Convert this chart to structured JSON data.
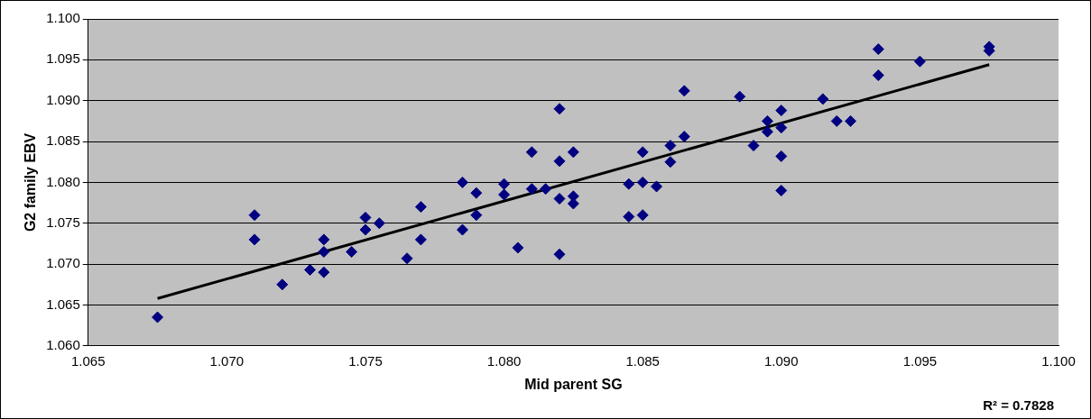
{
  "chart_data": {
    "type": "scatter",
    "xlabel": "Mid parent SG",
    "ylabel": "G2 family EBV",
    "xlim": [
      1.065,
      1.1
    ],
    "ylim": [
      1.06,
      1.1
    ],
    "xticks": [
      {
        "value": 1.065,
        "label": "1.065"
      },
      {
        "value": 1.07,
        "label": "1.070"
      },
      {
        "value": 1.075,
        "label": "1.075"
      },
      {
        "value": 1.08,
        "label": "1.080"
      },
      {
        "value": 1.085,
        "label": "1.085"
      },
      {
        "value": 1.09,
        "label": "1.090"
      },
      {
        "value": 1.095,
        "label": "1.095"
      },
      {
        "value": 1.1,
        "label": "1.100"
      }
    ],
    "yticks": [
      {
        "value": 1.06,
        "label": "1.060"
      },
      {
        "value": 1.065,
        "label": "1.065"
      },
      {
        "value": 1.07,
        "label": "1.070"
      },
      {
        "value": 1.075,
        "label": "1.075"
      },
      {
        "value": 1.08,
        "label": "1.080"
      },
      {
        "value": 1.085,
        "label": "1.085"
      },
      {
        "value": 1.09,
        "label": "1.090"
      },
      {
        "value": 1.095,
        "label": "1.095"
      },
      {
        "value": 1.1,
        "label": "1.100"
      }
    ],
    "grid": "y",
    "legend": false,
    "marker": "diamond",
    "series": [
      {
        "color": "#000080",
        "x": [
          1.0675,
          1.071,
          1.071,
          1.072,
          1.073,
          1.0735,
          1.0735,
          1.0735,
          1.0745,
          1.075,
          1.075,
          1.0755,
          1.0765,
          1.077,
          1.077,
          1.0785,
          1.0785,
          1.079,
          1.079,
          1.0805,
          1.08,
          1.08,
          1.081,
          1.081,
          1.0815,
          1.082,
          1.082,
          1.082,
          1.082,
          1.0825,
          1.0825,
          1.0825,
          1.0845,
          1.0845,
          1.085,
          1.085,
          1.085,
          1.0855,
          1.086,
          1.086,
          1.0865,
          1.0865,
          1.0885,
          1.089,
          1.0895,
          1.0895,
          1.09,
          1.09,
          1.09,
          1.09,
          1.0915,
          1.092,
          1.0925,
          1.0935,
          1.0935,
          1.095,
          1.0975,
          1.0975
        ],
        "values": [
          1.0635,
          1.076,
          1.073,
          1.0675,
          1.0693,
          1.073,
          1.0715,
          1.069,
          1.0715,
          1.0757,
          1.0742,
          1.075,
          1.0707,
          1.077,
          1.073,
          1.08,
          1.0742,
          1.0787,
          1.076,
          1.072,
          1.0798,
          1.0785,
          1.0837,
          1.0792,
          1.0792,
          1.089,
          1.0826,
          1.078,
          1.0712,
          1.0837,
          1.0783,
          1.0774,
          1.0798,
          1.0758,
          1.0837,
          1.08,
          1.076,
          1.0795,
          1.0845,
          1.0825,
          1.0912,
          1.0856,
          1.0905,
          1.0845,
          1.0875,
          1.0862,
          1.0888,
          1.0867,
          1.0832,
          1.079,
          1.0902,
          1.0875,
          1.0875,
          1.0963,
          1.0931,
          1.0948,
          1.0966,
          1.0961
        ]
      },
      {
        "type": "line",
        "color": "#000000",
        "marker": "none",
        "x": [
          1.0675,
          1.0975
        ],
        "values": [
          1.0658,
          1.0944
        ]
      }
    ],
    "annotations": [
      "R² = 0.7828"
    ]
  }
}
